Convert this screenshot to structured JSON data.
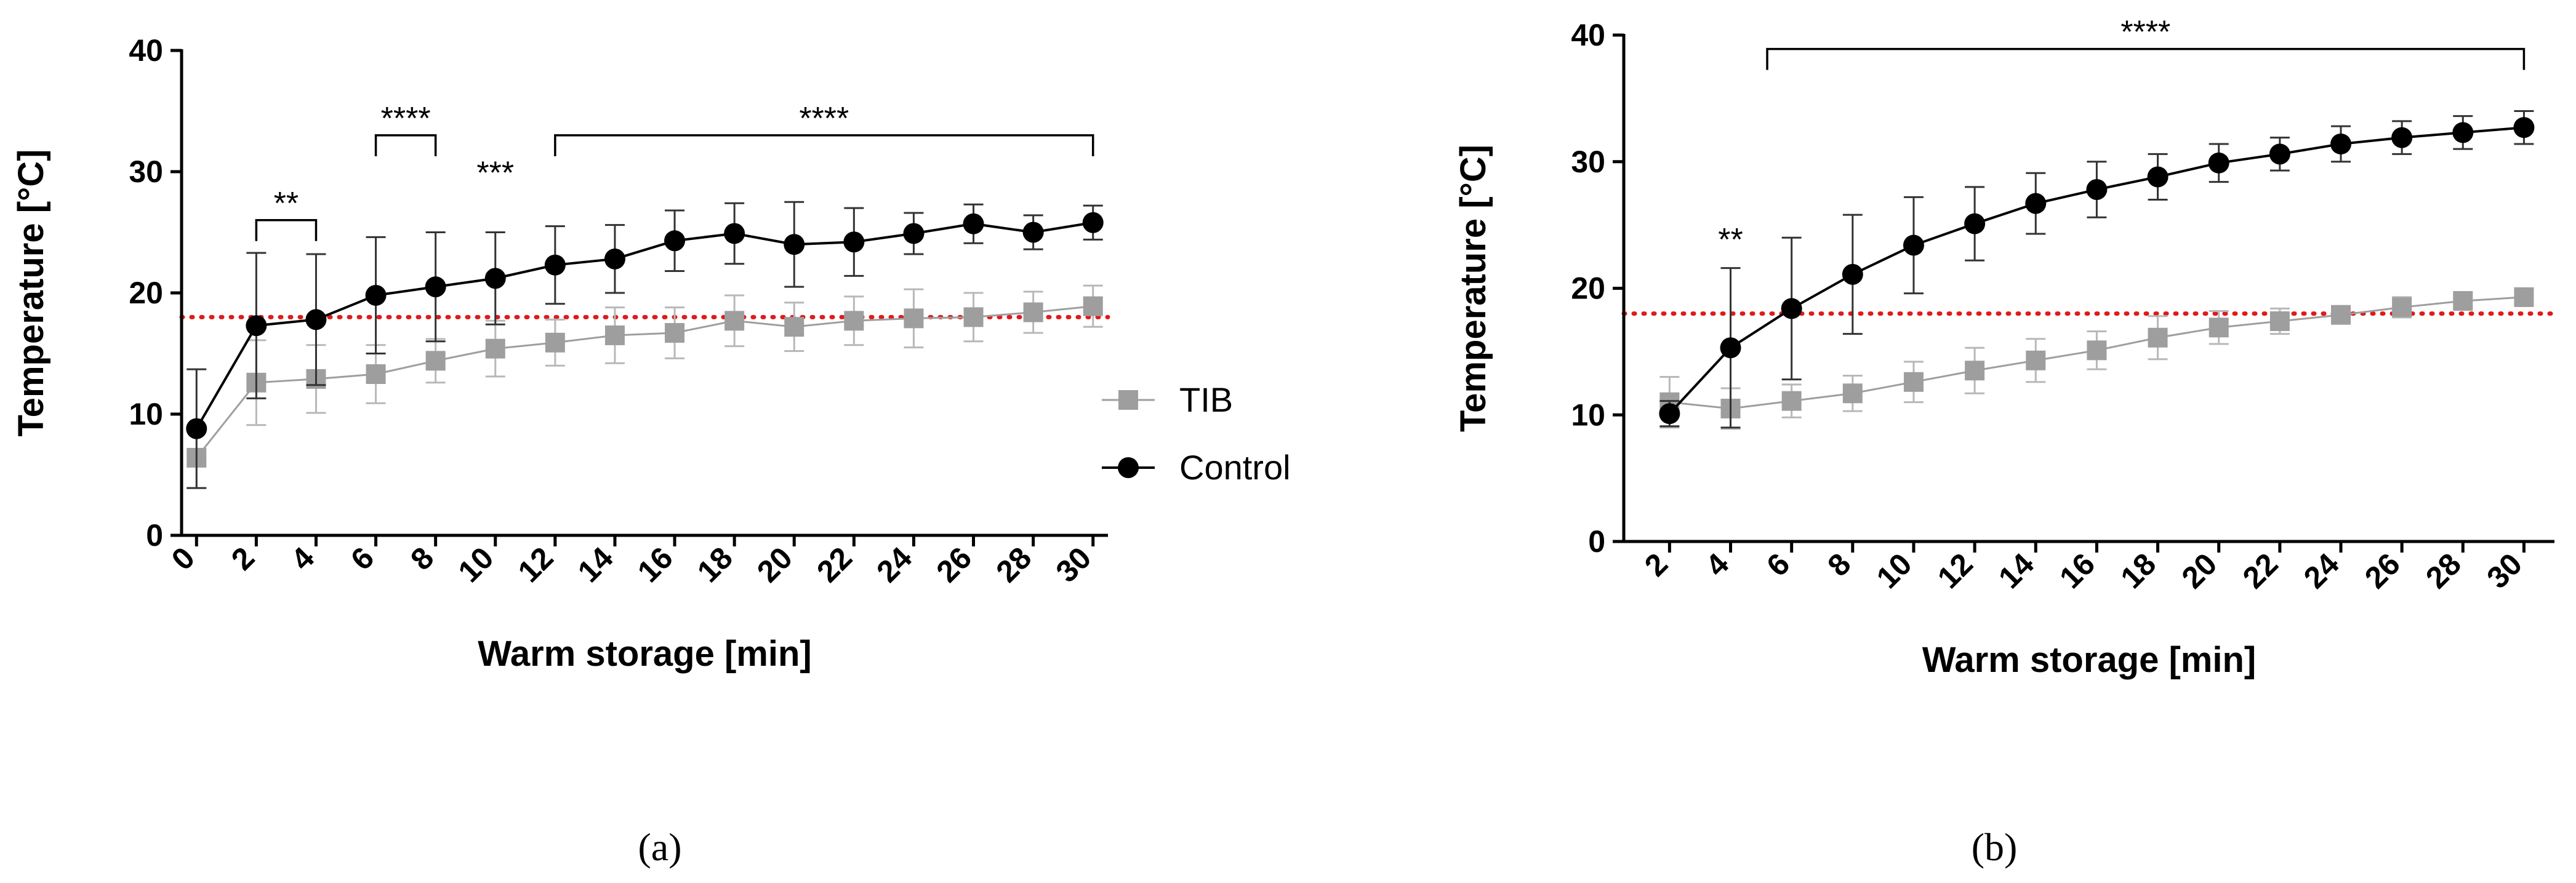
{
  "figure": {
    "panel_labels": [
      "(a)",
      "(b)"
    ]
  },
  "chart_data": [
    {
      "type": "line",
      "panel": "a",
      "xlabel": "Warm storage [min]",
      "ylabel": "Temperature [°C]",
      "x": [
        0,
        2,
        4,
        6,
        8,
        10,
        12,
        14,
        16,
        18,
        20,
        22,
        24,
        26,
        28,
        30
      ],
      "xticks": [
        0,
        2,
        4,
        6,
        8,
        10,
        12,
        14,
        16,
        18,
        20,
        22,
        24,
        26,
        28,
        30
      ],
      "ylim": [
        0,
        40
      ],
      "yticks": [
        0,
        10,
        20,
        30,
        40
      ],
      "threshold": {
        "value": 18,
        "color": "#e01a1a",
        "style": "dotted"
      },
      "legend": {
        "placement": "right",
        "entries": [
          "TIB",
          "Control"
        ]
      },
      "series": [
        {
          "name": "TIB",
          "marker": "square",
          "color": "#9e9e9e",
          "values": [
            6.4,
            12.6,
            12.9,
            13.3,
            14.4,
            15.4,
            15.9,
            16.5,
            16.7,
            17.7,
            17.2,
            17.7,
            17.9,
            18.0,
            18.4,
            18.9
          ],
          "errors": [
            2.5,
            3.5,
            2.8,
            2.4,
            1.8,
            2.3,
            1.9,
            2.3,
            2.1,
            2.1,
            2.0,
            2.0,
            2.4,
            2.0,
            1.7,
            1.7
          ]
        },
        {
          "name": "Control",
          "marker": "circle",
          "color": "#000000",
          "values": [
            8.8,
            17.3,
            17.8,
            19.8,
            20.5,
            21.2,
            22.3,
            22.8,
            24.3,
            24.9,
            24.0,
            24.2,
            24.9,
            25.7,
            25.0,
            25.8
          ],
          "errors": [
            4.9,
            6.0,
            5.4,
            4.8,
            4.5,
            3.8,
            3.2,
            2.8,
            2.5,
            2.5,
            3.5,
            2.8,
            1.7,
            1.6,
            1.4,
            1.4
          ]
        }
      ],
      "annotations": [
        {
          "label": "**",
          "bracket": [
            2,
            4
          ],
          "y": 26.0
        },
        {
          "label": "****",
          "bracket": [
            6,
            8
          ],
          "y": 33.0
        },
        {
          "label": "***",
          "x": 10,
          "y": 29.0
        },
        {
          "label": "****",
          "bracket": [
            12,
            30
          ],
          "y": 33.0
        }
      ]
    },
    {
      "type": "line",
      "panel": "b",
      "xlabel": "Warm storage [min]",
      "ylabel": "Temperature [°C]",
      "x": [
        2,
        4,
        6,
        8,
        10,
        12,
        14,
        16,
        18,
        20,
        22,
        24,
        26,
        28,
        30
      ],
      "xticks": [
        2,
        4,
        6,
        8,
        10,
        12,
        14,
        16,
        18,
        20,
        22,
        24,
        26,
        28,
        30
      ],
      "ylim": [
        0,
        40
      ],
      "yticks": [
        0,
        10,
        20,
        30,
        40
      ],
      "threshold": {
        "value": 18,
        "color": "#e01a1a",
        "style": "dotted"
      },
      "series": [
        {
          "name": "TIB",
          "marker": "square",
          "color": "#9e9e9e",
          "values": [
            11.0,
            10.5,
            11.1,
            11.7,
            12.6,
            13.5,
            14.3,
            15.1,
            16.1,
            16.9,
            17.4,
            17.9,
            18.5,
            19.0,
            19.3
          ],
          "errors": [
            2.0,
            1.6,
            1.3,
            1.4,
            1.6,
            1.8,
            1.7,
            1.5,
            1.7,
            1.3,
            1.0,
            0.6,
            0.8,
            0.5,
            0.5
          ]
        },
        {
          "name": "Control",
          "marker": "circle",
          "color": "#000000",
          "values": [
            10.1,
            15.3,
            18.4,
            21.1,
            23.4,
            25.1,
            26.7,
            27.8,
            28.8,
            29.9,
            30.6,
            31.4,
            31.9,
            32.3,
            32.7
          ],
          "errors": [
            1.0,
            6.3,
            5.6,
            4.7,
            3.8,
            2.9,
            2.4,
            2.2,
            1.8,
            1.5,
            1.3,
            1.4,
            1.3,
            1.3,
            1.3
          ]
        }
      ],
      "annotations": [
        {
          "label": "**",
          "x": 4,
          "y": 23.0
        },
        {
          "label": "****",
          "bracket": [
            5.2,
            30
          ],
          "y": 38.9
        }
      ]
    }
  ]
}
